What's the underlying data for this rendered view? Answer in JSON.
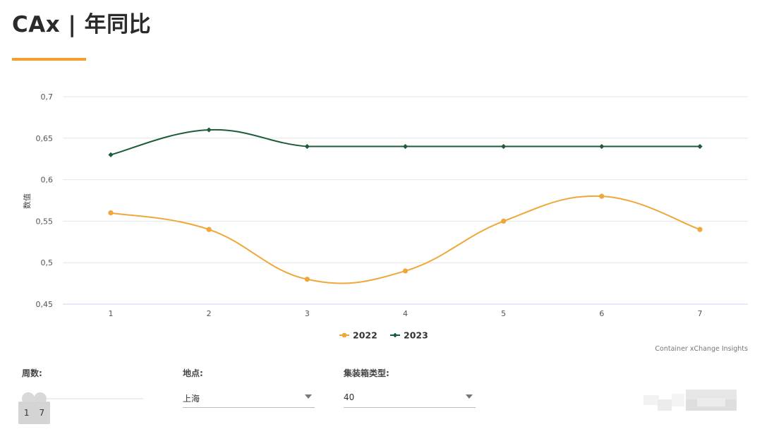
{
  "header": {
    "title": "CAx | 年同比"
  },
  "chart_data": {
    "type": "line",
    "x": [
      1,
      2,
      3,
      4,
      5,
      6,
      7
    ],
    "series": [
      {
        "name": "2022",
        "color": "#f0a73a",
        "marker": "circle",
        "values": [
          0.56,
          0.54,
          0.48,
          0.49,
          0.55,
          0.58,
          0.54
        ]
      },
      {
        "name": "2023",
        "color": "#1e5b3a",
        "marker": "diamond",
        "values": [
          0.63,
          0.66,
          0.64,
          0.64,
          0.64,
          0.64,
          0.64
        ]
      }
    ],
    "yticks": [
      "0,45",
      "0,5",
      "0,55",
      "0,6",
      "0,65",
      "0,7"
    ],
    "ytick_values": [
      0.45,
      0.5,
      0.55,
      0.6,
      0.65,
      0.7
    ],
    "ylim": [
      0.45,
      0.7
    ],
    "ylabel": "数值",
    "xlabel": "",
    "grid": true,
    "legend_position": "bottom-center",
    "credits": "Container xChange Insights"
  },
  "filters": {
    "weeks": {
      "label": "周数:",
      "min": "1",
      "max": "7"
    },
    "location": {
      "label": "地点:",
      "value": "上海"
    },
    "container_type": {
      "label": "集装箱类型:",
      "value": "40"
    }
  }
}
